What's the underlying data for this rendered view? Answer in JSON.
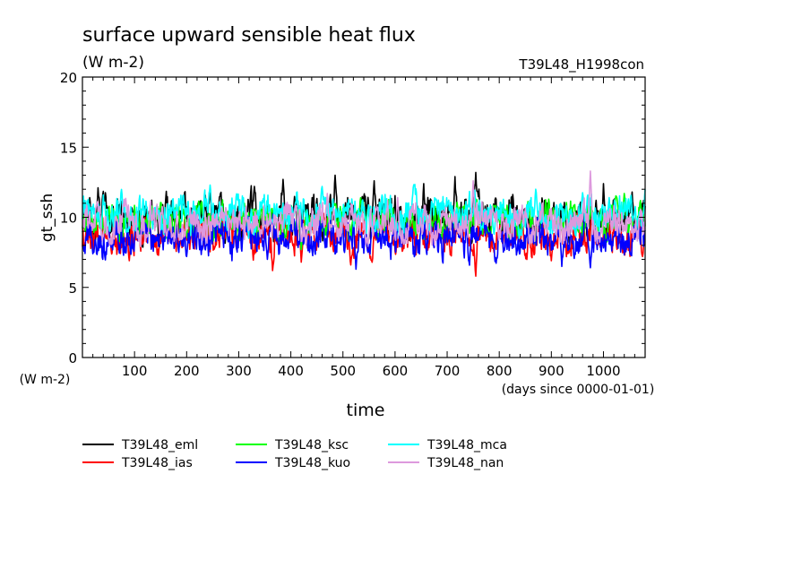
{
  "chart_data": {
    "type": "line",
    "title": "surface upward sensible heat flux",
    "subtitle": "(W m-2)",
    "run_label": "T39L48_H1998con",
    "ylabel": "gt_ssh",
    "yunit_label": "(W m-2)",
    "xlabel": "time",
    "xunit_label": "(days since 0000-01-01)",
    "xlim": [
      0,
      1080
    ],
    "ylim": [
      0,
      20
    ],
    "xticks": [
      100,
      200,
      300,
      400,
      500,
      600,
      700,
      800,
      900,
      1000
    ],
    "yticks": [
      0,
      5,
      10,
      15,
      20
    ],
    "grid": false,
    "legend_position": "bottom",
    "series": [
      {
        "name": "T39L48_eml",
        "color": "#000000",
        "mean": 10.0,
        "amp": 1.2,
        "peaks": [
          [
            30,
            12.1
          ],
          [
            245,
            12.0
          ],
          [
            330,
            12.2
          ],
          [
            385,
            12.7
          ],
          [
            485,
            13.0
          ],
          [
            560,
            12.6
          ],
          [
            655,
            12.4
          ],
          [
            715,
            12.9
          ],
          [
            755,
            13.2
          ],
          [
            1000,
            12.4
          ],
          [
            1055,
            11.8
          ]
        ]
      },
      {
        "name": "T39L48_ias",
        "color": "#ff0000",
        "mean": 8.7,
        "amp": 1.0,
        "peaks": [
          [
            90,
            6.9
          ],
          [
            365,
            6.2
          ],
          [
            420,
            6.8
          ],
          [
            515,
            6.6
          ],
          [
            755,
            5.8
          ],
          [
            900,
            6.9
          ],
          [
            1075,
            7.2
          ]
        ]
      },
      {
        "name": "T39L48_ksc",
        "color": "#00ff00",
        "mean": 9.8,
        "amp": 0.9,
        "peaks": [
          [
            180,
            10.9
          ],
          [
            420,
            7.7
          ],
          [
            610,
            8.3
          ],
          [
            1040,
            11.7
          ]
        ]
      },
      {
        "name": "T39L48_kuo",
        "color": "#0000ff",
        "mean": 8.5,
        "amp": 1.0,
        "peaks": [
          [
            20,
            7.4
          ],
          [
            200,
            7.2
          ],
          [
            355,
            7.0
          ],
          [
            525,
            6.3
          ],
          [
            920,
            6.5
          ],
          [
            975,
            6.4
          ]
        ]
      },
      {
        "name": "T39L48_mca",
        "color": "#00ffff",
        "mean": 10.3,
        "amp": 1.0,
        "peaks": [
          [
            40,
            11.6
          ],
          [
            245,
            12.3
          ],
          [
            460,
            12.2
          ],
          [
            870,
            12.0
          ],
          [
            1080,
            12.0
          ]
        ]
      },
      {
        "name": "T39L48_nan",
        "color": "#dd99dd",
        "mean": 9.6,
        "amp": 1.0,
        "peaks": [
          [
            470,
            11.7
          ],
          [
            605,
            11.4
          ],
          [
            750,
            12.6
          ],
          [
            975,
            13.3
          ]
        ]
      }
    ]
  }
}
